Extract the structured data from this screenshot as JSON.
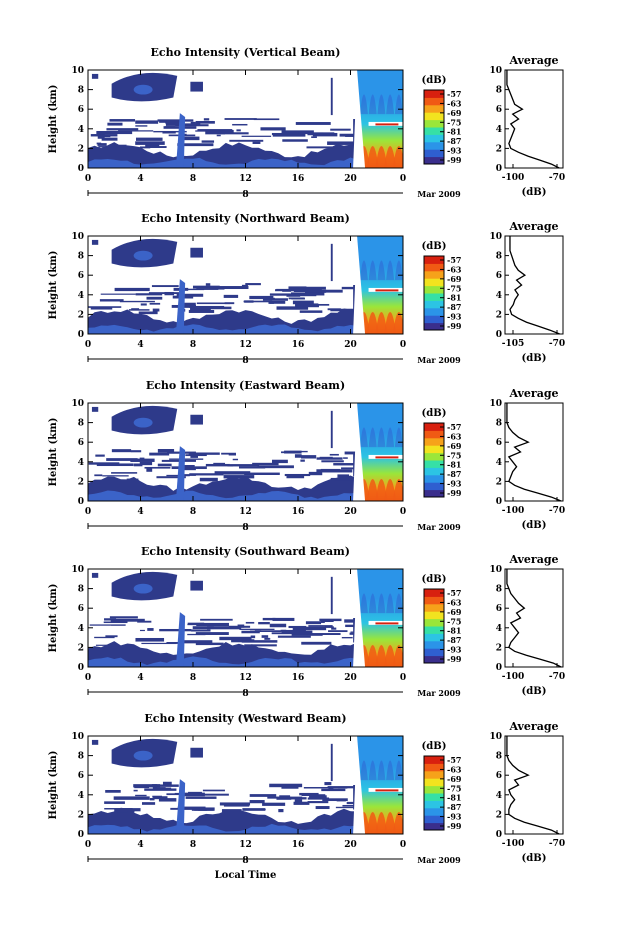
{
  "colors": {
    "scale": [
      "#3a2e8c",
      "#2f5fd0",
      "#2b94e8",
      "#2cc4e4",
      "#36e0a6",
      "#9ae63a",
      "#f2e31f",
      "#f6a21a",
      "#f05a14",
      "#d8200f"
    ],
    "echo_dark": "#2e3a8a",
    "echo_mid": "#3b63c8"
  },
  "chart_data": [
    {
      "type": "heatmap",
      "title": "Echo Intensity (Vertical Beam)",
      "ylabel": "Height (km)",
      "xlim": [
        0,
        24
      ],
      "ylim": [
        0,
        10
      ],
      "x_ticks": [
        "0",
        "4",
        "8",
        "12",
        "16",
        "20",
        "0"
      ],
      "y_ticks": [
        "0",
        "2",
        "4",
        "6",
        "8",
        "10"
      ],
      "date_label": "8",
      "month_label": "Mar 2009",
      "colorbar": {
        "unit": "(dB)",
        "ticks": [
          "-57",
          "-63",
          "-69",
          "-75",
          "-81",
          "-87",
          "-93",
          "-99"
        ]
      },
      "average": {
        "title": "Average",
        "xlabel": "(dB)",
        "x_ticks": [
          "-100",
          "-70"
        ],
        "xlim": [
          -100,
          -70
        ],
        "profile": [
          [
            -72,
            0
          ],
          [
            -76,
            0.4
          ],
          [
            -82,
            0.8
          ],
          [
            -88,
            1.2
          ],
          [
            -93,
            1.6
          ],
          [
            -97,
            2
          ],
          [
            -98,
            2.5
          ],
          [
            -97,
            3
          ],
          [
            -96,
            3.5
          ],
          [
            -95,
            4
          ],
          [
            -97,
            4.5
          ],
          [
            -93,
            5
          ],
          [
            -96,
            5.5
          ],
          [
            -91,
            6
          ],
          [
            -95,
            6.5
          ],
          [
            -96,
            7
          ],
          [
            -97,
            7.5
          ],
          [
            -98,
            8
          ],
          [
            -99,
            8.5
          ],
          [
            -99,
            9
          ],
          [
            -99,
            10
          ]
        ]
      }
    },
    {
      "type": "heatmap",
      "title": "Echo Intensity (Northward Beam)",
      "ylabel": "Height (km)",
      "xlim": [
        0,
        24
      ],
      "ylim": [
        0,
        10
      ],
      "x_ticks": [
        "0",
        "4",
        "8",
        "12",
        "16",
        "20",
        "0"
      ],
      "y_ticks": [
        "0",
        "2",
        "4",
        "6",
        "8",
        "10"
      ],
      "date_label": "8",
      "month_label": "Mar 2009",
      "colorbar": {
        "unit": "(dB)",
        "ticks": [
          "-57",
          "-63",
          "-69",
          "-75",
          "-81",
          "-87",
          "-93",
          "-99"
        ]
      },
      "average": {
        "title": "Average",
        "xlabel": "(dB)",
        "x_ticks": [
          "-105",
          "-70"
        ],
        "xlim": [
          -105,
          -70
        ],
        "profile": [
          [
            -72,
            0
          ],
          [
            -78,
            0.4
          ],
          [
            -85,
            0.8
          ],
          [
            -92,
            1.2
          ],
          [
            -97,
            1.6
          ],
          [
            -101,
            2
          ],
          [
            -102,
            2.5
          ],
          [
            -100,
            3
          ],
          [
            -99,
            3.5
          ],
          [
            -97,
            4
          ],
          [
            -99,
            4.5
          ],
          [
            -95,
            5
          ],
          [
            -98,
            5.5
          ],
          [
            -93,
            6
          ],
          [
            -97,
            6.5
          ],
          [
            -99,
            7
          ],
          [
            -100,
            7.5
          ],
          [
            -101,
            8
          ],
          [
            -102,
            8.5
          ],
          [
            -102,
            9
          ],
          [
            -102,
            10
          ]
        ]
      }
    },
    {
      "type": "heatmap",
      "title": "Echo Intensity (Eastward Beam)",
      "ylabel": "Height (km)",
      "xlim": [
        0,
        24
      ],
      "ylim": [
        0,
        10
      ],
      "x_ticks": [
        "0",
        "4",
        "8",
        "12",
        "16",
        "20",
        "0"
      ],
      "y_ticks": [
        "0",
        "2",
        "4",
        "6",
        "8",
        "10"
      ],
      "date_label": "8",
      "month_label": "Mar 2009",
      "colorbar": {
        "unit": "(dB)",
        "ticks": [
          "-57",
          "-63",
          "-69",
          "-75",
          "-81",
          "-87",
          "-93",
          "-99"
        ]
      },
      "average": {
        "title": "Average",
        "xlabel": "(dB)",
        "x_ticks": [
          "-100",
          "-70"
        ],
        "xlim": [
          -100,
          -70
        ],
        "profile": [
          [
            -71,
            0
          ],
          [
            -76,
            0.4
          ],
          [
            -83,
            0.8
          ],
          [
            -90,
            1.2
          ],
          [
            -95,
            1.6
          ],
          [
            -98,
            2
          ],
          [
            -97,
            2.5
          ],
          [
            -96,
            3
          ],
          [
            -94,
            3.5
          ],
          [
            -96,
            4
          ],
          [
            -98,
            4.5
          ],
          [
            -92,
            5
          ],
          [
            -95,
            5.5
          ],
          [
            -88,
            6
          ],
          [
            -93,
            6.5
          ],
          [
            -96,
            7
          ],
          [
            -98,
            7.5
          ],
          [
            -99,
            8
          ],
          [
            -99,
            8.5
          ],
          [
            -99,
            9
          ],
          [
            -99,
            10
          ]
        ]
      }
    },
    {
      "type": "heatmap",
      "title": "Echo Intensity (Southward Beam)",
      "ylabel": "Height (km)",
      "xlim": [
        0,
        24
      ],
      "ylim": [
        0,
        10
      ],
      "x_ticks": [
        "0",
        "4",
        "8",
        "12",
        "16",
        "20",
        "0"
      ],
      "y_ticks": [
        "0",
        "2",
        "4",
        "6",
        "8",
        "10"
      ],
      "date_label": "8",
      "month_label": "Mar 2009",
      "colorbar": {
        "unit": "(dB)",
        "ticks": [
          "-57",
          "-63",
          "-69",
          "-75",
          "-81",
          "-87",
          "-93",
          "-99"
        ]
      },
      "average": {
        "title": "Average",
        "xlabel": "(dB)",
        "x_ticks": [
          "-100",
          "-70"
        ],
        "xlim": [
          -100,
          -70
        ],
        "profile": [
          [
            -71,
            0
          ],
          [
            -75,
            0.4
          ],
          [
            -82,
            0.8
          ],
          [
            -89,
            1.2
          ],
          [
            -95,
            1.6
          ],
          [
            -98,
            2
          ],
          [
            -97,
            2.5
          ],
          [
            -95,
            3
          ],
          [
            -93,
            3.5
          ],
          [
            -95,
            4
          ],
          [
            -97,
            4.5
          ],
          [
            -92,
            5
          ],
          [
            -94,
            5.5
          ],
          [
            -90,
            6
          ],
          [
            -93,
            6.5
          ],
          [
            -95,
            7
          ],
          [
            -97,
            7.5
          ],
          [
            -98,
            8
          ],
          [
            -99,
            8.5
          ],
          [
            -99,
            9
          ],
          [
            -99,
            10
          ]
        ]
      }
    },
    {
      "type": "heatmap",
      "title": "Echo Intensity (Westward Beam)",
      "ylabel": "Height (km)",
      "xlabel": "Local Time",
      "xlim": [
        0,
        24
      ],
      "ylim": [
        0,
        10
      ],
      "x_ticks": [
        "0",
        "4",
        "8",
        "12",
        "16",
        "20",
        "0"
      ],
      "y_ticks": [
        "0",
        "2",
        "4",
        "6",
        "8",
        "10"
      ],
      "date_label": "8",
      "month_label": "Mar 2009",
      "colorbar": {
        "unit": "(dB)",
        "ticks": [
          "-57",
          "-63",
          "-69",
          "-75",
          "-81",
          "-87",
          "-93",
          "-99"
        ]
      },
      "average": {
        "title": "Average",
        "xlabel": "(dB)",
        "x_ticks": [
          "-100",
          "-70"
        ],
        "xlim": [
          -100,
          -70
        ],
        "profile": [
          [
            -72,
            0
          ],
          [
            -76,
            0.4
          ],
          [
            -83,
            0.8
          ],
          [
            -90,
            1.2
          ],
          [
            -95,
            1.6
          ],
          [
            -98,
            2
          ],
          [
            -98,
            2.5
          ],
          [
            -97,
            3
          ],
          [
            -95,
            3.5
          ],
          [
            -97,
            4
          ],
          [
            -98,
            4.5
          ],
          [
            -93,
            5
          ],
          [
            -95,
            5.5
          ],
          [
            -88,
            6
          ],
          [
            -93,
            6.5
          ],
          [
            -96,
            7
          ],
          [
            -98,
            7.5
          ],
          [
            -99,
            8
          ],
          [
            -99,
            8.5
          ],
          [
            -99,
            9
          ],
          [
            -99,
            10
          ]
        ]
      }
    }
  ]
}
